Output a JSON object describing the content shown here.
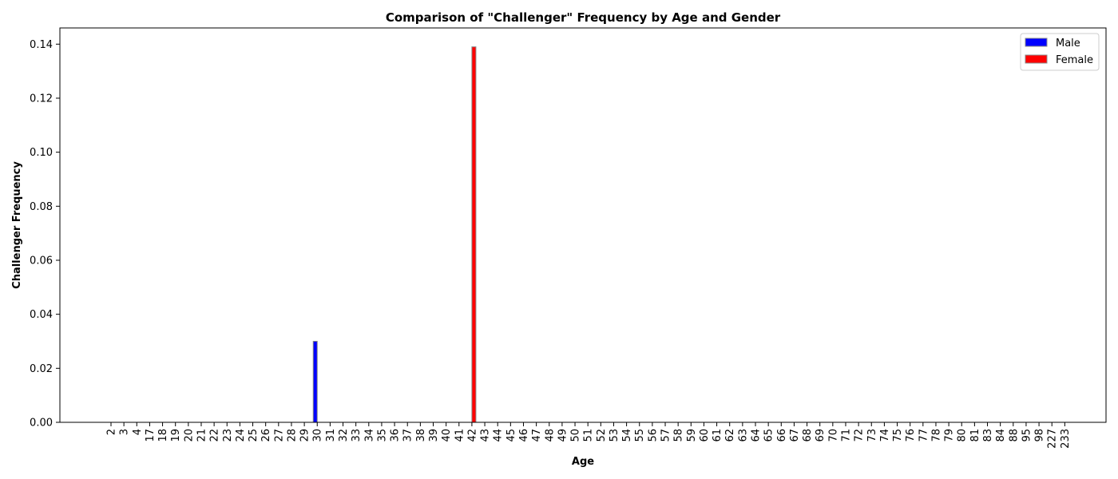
{
  "chart_data": {
    "type": "bar",
    "title": "Comparison of \"Challenger\" Frequency by Age and Gender",
    "xlabel": "Age",
    "ylabel": "Challenger Frequency",
    "ylim": [
      0,
      0.146
    ],
    "yticks": [
      0.0,
      0.02,
      0.04,
      0.06,
      0.08,
      0.1,
      0.12,
      0.14
    ],
    "ytick_labels": [
      "0.00",
      "0.02",
      "0.04",
      "0.06",
      "0.08",
      "0.10",
      "0.12",
      "0.14"
    ],
    "grid": false,
    "legend_position": "top-right",
    "categories": [
      "2",
      "3",
      "4",
      "17",
      "18",
      "19",
      "20",
      "21",
      "22",
      "23",
      "24",
      "25",
      "26",
      "27",
      "28",
      "29",
      "30",
      "31",
      "32",
      "33",
      "34",
      "35",
      "36",
      "37",
      "38",
      "39",
      "40",
      "41",
      "42",
      "43",
      "44",
      "45",
      "46",
      "47",
      "48",
      "49",
      "50",
      "51",
      "52",
      "53",
      "54",
      "55",
      "56",
      "57",
      "58",
      "59",
      "60",
      "61",
      "62",
      "63",
      "64",
      "65",
      "66",
      "67",
      "68",
      "69",
      "70",
      "71",
      "72",
      "73",
      "74",
      "75",
      "76",
      "77",
      "78",
      "79",
      "80",
      "81",
      "83",
      "84",
      "88",
      "95",
      "98",
      "227",
      "233"
    ],
    "series": [
      {
        "name": "Male",
        "color": "#0000ff",
        "values": [
          0,
          0,
          0,
          0,
          0,
          0,
          0,
          0,
          0,
          0,
          0,
          0,
          0,
          0,
          0,
          0,
          0.03,
          0,
          0,
          0,
          0,
          0,
          0,
          0,
          0,
          0,
          0,
          0,
          0,
          0,
          0,
          0,
          0,
          0,
          0,
          0,
          0,
          0,
          0,
          0,
          0,
          0,
          0,
          0,
          0,
          0,
          0,
          0,
          0,
          0,
          0,
          0,
          0,
          0,
          0,
          0,
          0,
          0,
          0,
          0,
          0,
          0,
          0,
          0,
          0,
          0,
          0,
          0,
          0,
          0,
          0,
          0,
          0,
          0,
          0
        ]
      },
      {
        "name": "Female",
        "color": "#ff0000",
        "values": [
          0,
          0,
          0,
          0,
          0,
          0,
          0,
          0,
          0,
          0,
          0,
          0,
          0,
          0,
          0,
          0,
          0,
          0,
          0,
          0,
          0,
          0,
          0,
          0,
          0,
          0,
          0,
          0,
          0.139,
          0,
          0,
          0,
          0,
          0,
          0,
          0,
          0,
          0,
          0,
          0,
          0,
          0,
          0,
          0,
          0,
          0,
          0,
          0,
          0,
          0,
          0,
          0,
          0,
          0,
          0,
          0,
          0,
          0,
          0,
          0,
          0,
          0,
          0,
          0,
          0,
          0,
          0,
          0,
          0,
          0,
          0,
          0,
          0,
          0,
          0
        ]
      }
    ]
  }
}
